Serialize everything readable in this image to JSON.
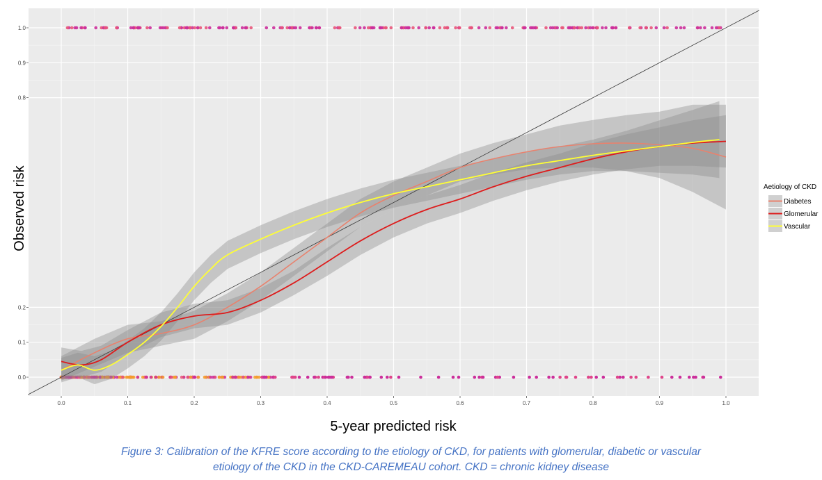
{
  "chart_data": {
    "type": "line",
    "title": "",
    "xlabel": "5-year predicted risk",
    "ylabel": "Observed risk",
    "xlim": [
      -0.05,
      1.05
    ],
    "ylim": [
      -0.05,
      1.05
    ],
    "x_ticks": [
      "0.0",
      "0.1",
      "0.2",
      "0.3",
      "0.4",
      "0.5",
      "0.6",
      "0.7",
      "0.8",
      "0.9",
      "1.0"
    ],
    "y_ticks": [
      "0.0",
      "0.1",
      "0.2",
      "0.8",
      "0.9",
      "1.0"
    ],
    "y_tick_values": [
      0.0,
      0.1,
      0.2,
      0.8,
      0.9,
      1.0
    ],
    "grid": true,
    "reference_line": "y = x",
    "legend": {
      "title": "Aetiology of CKD",
      "placement": "right",
      "entries": [
        "Diabetes",
        "Glomerular",
        "Vascular"
      ]
    },
    "series": [
      {
        "name": "Diabetes",
        "color": "#e8826e",
        "x": [
          0.0,
          0.05,
          0.1,
          0.15,
          0.2,
          0.25,
          0.3,
          0.35,
          0.4,
          0.45,
          0.5,
          0.55,
          0.6,
          0.65,
          0.7,
          0.75,
          0.8,
          0.85,
          0.9,
          0.95,
          1.0
        ],
        "y": [
          0.02,
          0.07,
          0.11,
          0.125,
          0.15,
          0.2,
          0.26,
          0.33,
          0.4,
          0.47,
          0.52,
          0.56,
          0.6,
          0.625,
          0.645,
          0.66,
          0.668,
          0.67,
          0.665,
          0.655,
          0.63
        ],
        "ci_lower": [
          -0.01,
          0.03,
          0.07,
          0.09,
          0.11,
          0.16,
          0.22,
          0.29,
          0.36,
          0.43,
          0.48,
          0.52,
          0.56,
          0.58,
          0.595,
          0.6,
          0.6,
          0.59,
          0.57,
          0.53,
          0.48
        ],
        "ci_upper": [
          0.06,
          0.11,
          0.15,
          0.16,
          0.19,
          0.24,
          0.3,
          0.37,
          0.44,
          0.51,
          0.56,
          0.6,
          0.64,
          0.67,
          0.695,
          0.72,
          0.736,
          0.75,
          0.76,
          0.78,
          0.78
        ]
      },
      {
        "name": "Glomerular",
        "color": "#dd1c1c",
        "x": [
          0.0,
          0.03,
          0.06,
          0.1,
          0.15,
          0.2,
          0.25,
          0.3,
          0.35,
          0.4,
          0.45,
          0.5,
          0.55,
          0.6,
          0.65,
          0.7,
          0.75,
          0.8,
          0.85,
          0.9,
          0.95,
          1.0
        ],
        "y": [
          0.045,
          0.035,
          0.05,
          0.1,
          0.15,
          0.175,
          0.185,
          0.22,
          0.27,
          0.33,
          0.39,
          0.44,
          0.48,
          0.51,
          0.545,
          0.575,
          0.6,
          0.625,
          0.645,
          0.66,
          0.67,
          0.675
        ],
        "ci_lower": [
          0.005,
          0.0,
          0.015,
          0.065,
          0.115,
          0.14,
          0.15,
          0.185,
          0.235,
          0.29,
          0.35,
          0.4,
          0.44,
          0.47,
          0.505,
          0.535,
          0.56,
          0.58,
          0.595,
          0.605,
          0.605,
          0.6
        ],
        "ci_upper": [
          0.085,
          0.075,
          0.09,
          0.135,
          0.185,
          0.21,
          0.22,
          0.255,
          0.305,
          0.37,
          0.43,
          0.48,
          0.52,
          0.55,
          0.585,
          0.615,
          0.64,
          0.67,
          0.695,
          0.715,
          0.735,
          0.75
        ]
      },
      {
        "name": "Vascular",
        "color": "#ffff33",
        "x": [
          0.0,
          0.025,
          0.05,
          0.075,
          0.1,
          0.125,
          0.15,
          0.175,
          0.2,
          0.225,
          0.25,
          0.3,
          0.35,
          0.4,
          0.45,
          0.5,
          0.55,
          0.6,
          0.65,
          0.7,
          0.75,
          0.8,
          0.85,
          0.9,
          0.95,
          0.99
        ],
        "y": [
          0.02,
          0.035,
          0.02,
          0.035,
          0.065,
          0.1,
          0.145,
          0.2,
          0.26,
          0.31,
          0.35,
          0.395,
          0.435,
          0.47,
          0.5,
          0.525,
          0.545,
          0.565,
          0.585,
          0.605,
          0.62,
          0.635,
          0.648,
          0.66,
          0.672,
          0.68
        ],
        "ci_lower": [
          -0.015,
          0.0,
          -0.02,
          -0.005,
          0.025,
          0.06,
          0.105,
          0.16,
          0.22,
          0.27,
          0.31,
          0.355,
          0.395,
          0.43,
          0.46,
          0.485,
          0.505,
          0.525,
          0.545,
          0.565,
          0.58,
          0.59,
          0.59,
          0.585,
          0.58,
          0.57
        ],
        "ci_upper": [
          0.055,
          0.07,
          0.06,
          0.075,
          0.105,
          0.14,
          0.185,
          0.24,
          0.3,
          0.35,
          0.39,
          0.435,
          0.475,
          0.51,
          0.54,
          0.565,
          0.585,
          0.605,
          0.625,
          0.645,
          0.66,
          0.68,
          0.705,
          0.735,
          0.765,
          0.79
        ]
      }
    ]
  },
  "caption": {
    "line1": "Figure 3: Calibration of the KFRE score according to the etiology of CKD, for patients with glomerular, diabetic or vascular",
    "line2": "etiology of the CKD in the CKD-CAREMEAU cohort. CKD = chronic kidney disease"
  }
}
